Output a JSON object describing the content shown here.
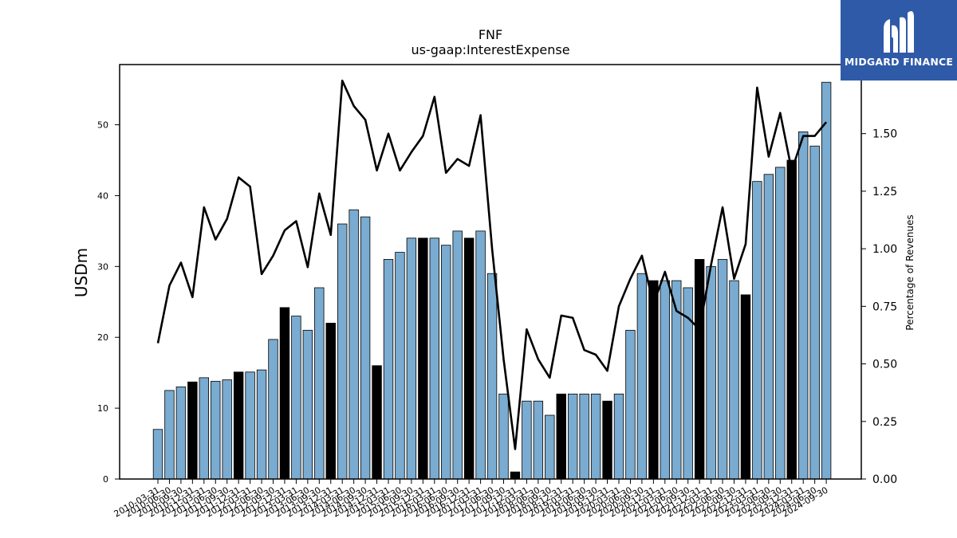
{
  "chart_data": {
    "type": "bar",
    "title": "FNF",
    "subtitle": "us-gaap:InterestExpense",
    "ylabel": "USDm",
    "y2label": "Percentage of Revenues",
    "ylim": [
      0,
      58.5
    ],
    "y2lim": [
      0,
      1.8
    ],
    "yticks": [
      0,
      10,
      20,
      30,
      40,
      50
    ],
    "y2ticks": [
      "0.00",
      "0.25",
      "0.50",
      "0.75",
      "1.00",
      "1.25",
      "1.50",
      "1.75"
    ],
    "categories": [
      "2010-03-31",
      "2010-06-30",
      "2010-09-30",
      "2010-12-31",
      "2011-03-31",
      "2011-06-30",
      "2011-09-30",
      "2011-12-31",
      "2012-03-31",
      "2012-06-30",
      "2012-09-30",
      "2012-12-31",
      "2013-03-31",
      "2013-06-30",
      "2013-09-30",
      "2013-12-31",
      "2014-03-31",
      "2014-06-30",
      "2014-09-30",
      "2014-12-31",
      "2015-03-31",
      "2015-06-30",
      "2015-09-30",
      "2015-12-31",
      "2016-03-31",
      "2016-06-30",
      "2016-09-30",
      "2016-12-31",
      "2017-03-31",
      "2017-06-30",
      "2017-09-30",
      "2017-12-31",
      "2018-03-31",
      "2018-06-30",
      "2018-09-30",
      "2018-12-31",
      "2019-03-31",
      "2019-06-30",
      "2019-09-30",
      "2019-12-31",
      "2020-03-31",
      "2020-06-30",
      "2020-09-30",
      "2020-12-31",
      "2021-03-31",
      "2021-06-30",
      "2021-09-30",
      "2021-12-31",
      "2022-03-31",
      "2022-06-30",
      "2022-09-30",
      "2022-12-31",
      "2023-03-31",
      "2023-06-30",
      "2023-09-30",
      "2023-12-31",
      "2024-03-31",
      "2024-06-30",
      "2024-09-30"
    ],
    "series": [
      {
        "values": [
          7,
          12.5,
          13,
          13.7,
          14.3,
          13.8,
          14,
          15.1,
          15.1,
          15.4,
          19.7,
          24.2,
          23,
          21,
          27,
          22,
          36,
          38,
          37,
          16,
          31,
          32,
          34,
          34,
          34,
          33,
          35,
          34,
          35,
          29,
          12,
          1,
          11,
          11,
          9,
          12,
          12,
          12,
          12,
          11,
          12,
          21,
          29,
          28,
          28,
          28,
          27,
          31,
          30,
          31,
          28,
          26,
          42,
          43,
          44,
          45,
          49,
          47,
          56
        ],
        "highlight": [
          false,
          false,
          false,
          true,
          false,
          false,
          false,
          true,
          false,
          false,
          false,
          true,
          false,
          false,
          false,
          true,
          false,
          false,
          false,
          true,
          false,
          false,
          false,
          true,
          false,
          false,
          false,
          true,
          false,
          false,
          false,
          true,
          false,
          false,
          false,
          true,
          false,
          false,
          false,
          true,
          false,
          false,
          false,
          true,
          false,
          false,
          false,
          true,
          false,
          false,
          false,
          true,
          false,
          false,
          false,
          true,
          false,
          false,
          false
        ],
        "color": "#7aabd0",
        "highlight_color": "#000000"
      },
      {
        "axis": "right",
        "values": [
          0.59,
          0.84,
          0.94,
          0.79,
          1.18,
          1.04,
          1.13,
          1.31,
          1.27,
          0.89,
          0.97,
          1.08,
          1.12,
          0.92,
          1.24,
          1.06,
          1.73,
          1.62,
          1.56,
          1.34,
          1.5,
          1.34,
          1.42,
          1.49,
          1.66,
          1.33,
          1.39,
          1.36,
          1.58,
          1.0,
          0.52,
          0.13,
          0.65,
          0.52,
          0.44,
          0.71,
          0.7,
          0.56,
          0.54,
          0.47,
          0.75,
          0.87,
          0.97,
          0.76,
          0.9,
          0.73,
          0.7,
          0.65,
          0.93,
          1.18,
          0.87,
          1.02,
          1.7,
          1.4,
          1.59,
          1.34,
          1.49,
          1.49,
          1.55
        ],
        "color": "#000000"
      }
    ],
    "grid": false
  },
  "logo": {
    "text": "MIDGARD FINANCE",
    "icon": "midgard-logo-icon"
  }
}
